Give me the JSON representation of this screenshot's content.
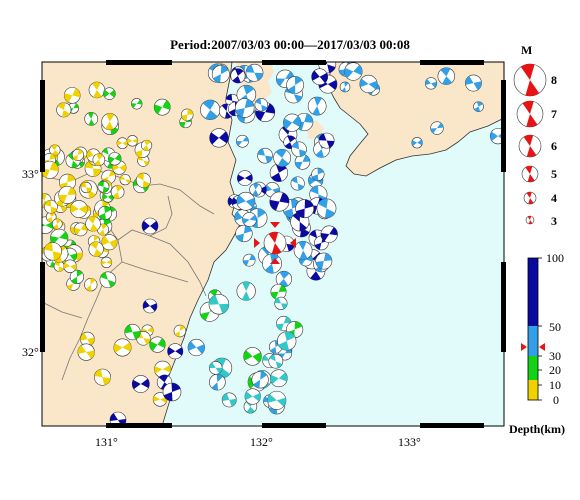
{
  "title": "Period:2007/03/03 00:00––2017/03/03 00:08",
  "map": {
    "lon_ticks": [
      "131°",
      "132°",
      "133°"
    ],
    "lat_ticks": [
      "33°",
      "32°"
    ],
    "land_color": "#fae6c8",
    "sea_color": "#e1fafa"
  },
  "magnitude_legend": {
    "header": "M",
    "labels": [
      "8",
      "7",
      "6",
      "5",
      "4",
      "3"
    ]
  },
  "depth_legend": {
    "title": "Depth(km)",
    "tick_labels": [
      "100",
      "50",
      "30",
      "20",
      "10",
      "0"
    ],
    "colors": {
      "shallow": "#f0d200",
      "mid_shallow": "#14d214",
      "mid": "#32a0e6",
      "deep": "#0a0aa0",
      "mainshock": "#e61414"
    }
  }
}
